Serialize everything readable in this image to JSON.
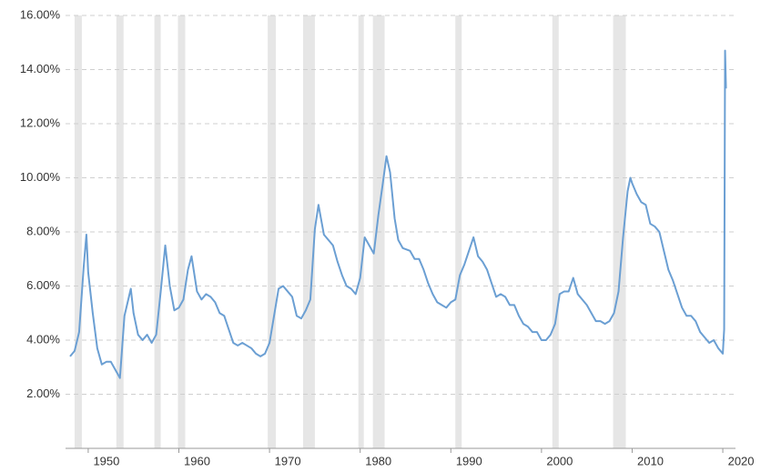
{
  "chart_data": {
    "type": "line",
    "x": [
      1948.0,
      1948.5,
      1949.0,
      1949.5,
      1949.8,
      1950.0,
      1950.5,
      1951.0,
      1951.5,
      1952.0,
      1952.5,
      1953.0,
      1953.5,
      1954.0,
      1954.7,
      1955.0,
      1955.5,
      1956.0,
      1956.5,
      1957.0,
      1957.5,
      1958.0,
      1958.5,
      1959.0,
      1959.5,
      1960.0,
      1960.5,
      1961.0,
      1961.4,
      1962.0,
      1962.5,
      1963.0,
      1963.5,
      1964.0,
      1964.5,
      1965.0,
      1965.5,
      1966.0,
      1966.5,
      1967.0,
      1967.5,
      1968.0,
      1968.5,
      1969.0,
      1969.5,
      1970.0,
      1970.5,
      1971.0,
      1971.5,
      1972.0,
      1972.5,
      1973.0,
      1973.5,
      1974.0,
      1974.5,
      1975.0,
      1975.4,
      1976.0,
      1976.5,
      1977.0,
      1977.5,
      1978.0,
      1978.5,
      1979.0,
      1979.5,
      1980.0,
      1980.5,
      1981.0,
      1981.5,
      1982.0,
      1982.5,
      1982.9,
      1983.3,
      1983.8,
      1984.2,
      1984.7,
      1985.5,
      1986.0,
      1986.5,
      1987.0,
      1987.5,
      1988.0,
      1988.5,
      1989.0,
      1989.5,
      1990.0,
      1990.5,
      1991.0,
      1991.5,
      1992.0,
      1992.5,
      1993.0,
      1993.5,
      1994.0,
      1994.5,
      1995.0,
      1995.5,
      1996.0,
      1996.5,
      1997.0,
      1997.5,
      1998.0,
      1998.5,
      1999.0,
      1999.5,
      2000.0,
      2000.5,
      2001.0,
      2001.5,
      2002.0,
      2002.5,
      2003.0,
      2003.5,
      2004.0,
      2004.5,
      2005.0,
      2005.5,
      2006.0,
      2006.5,
      2007.0,
      2007.5,
      2008.0,
      2008.5,
      2009.0,
      2009.5,
      2009.8,
      2010.0,
      2010.5,
      2011.0,
      2011.5,
      2012.0,
      2012.5,
      2013.0,
      2013.5,
      2014.0,
      2014.5,
      2015.0,
      2015.5,
      2016.0,
      2016.5,
      2017.0,
      2017.5,
      2018.0,
      2018.5,
      2019.0,
      2019.5,
      2020.0,
      2020.15,
      2020.25,
      2020.35
    ],
    "values": [
      3.4,
      3.6,
      4.3,
      6.7,
      7.9,
      6.5,
      5.0,
      3.7,
      3.1,
      3.2,
      3.2,
      2.9,
      2.6,
      4.9,
      5.9,
      5.0,
      4.2,
      4.0,
      4.2,
      3.9,
      4.2,
      5.8,
      7.5,
      6.0,
      5.1,
      5.2,
      5.5,
      6.6,
      7.1,
      5.8,
      5.5,
      5.7,
      5.6,
      5.4,
      5.0,
      4.9,
      4.4,
      3.9,
      3.8,
      3.9,
      3.8,
      3.7,
      3.5,
      3.4,
      3.5,
      3.9,
      4.9,
      5.9,
      6.0,
      5.8,
      5.6,
      4.9,
      4.8,
      5.1,
      5.5,
      8.1,
      9.0,
      7.9,
      7.7,
      7.5,
      6.9,
      6.4,
      6.0,
      5.9,
      5.7,
      6.3,
      7.8,
      7.5,
      7.2,
      8.6,
      9.8,
      10.8,
      10.2,
      8.5,
      7.7,
      7.4,
      7.3,
      7.0,
      7.0,
      6.6,
      6.1,
      5.7,
      5.4,
      5.3,
      5.2,
      5.4,
      5.5,
      6.4,
      6.8,
      7.3,
      7.8,
      7.1,
      6.9,
      6.6,
      6.1,
      5.6,
      5.7,
      5.6,
      5.3,
      5.3,
      4.9,
      4.6,
      4.5,
      4.3,
      4.3,
      4.0,
      4.0,
      4.2,
      4.6,
      5.7,
      5.8,
      5.8,
      6.3,
      5.7,
      5.5,
      5.3,
      5.0,
      4.7,
      4.7,
      4.6,
      4.7,
      5.0,
      5.8,
      7.8,
      9.5,
      10.0,
      9.8,
      9.4,
      9.1,
      9.0,
      8.3,
      8.2,
      8.0,
      7.3,
      6.6,
      6.2,
      5.7,
      5.2,
      4.9,
      4.9,
      4.7,
      4.3,
      4.1,
      3.9,
      4.0,
      3.7,
      3.5,
      4.4,
      14.7,
      13.3
    ],
    "color": "#6b9fd3",
    "shaded_ranges": [
      [
        1948.5,
        1949.3
      ],
      [
        1953.1,
        1953.9
      ],
      [
        1957.3,
        1958.0
      ],
      [
        1959.9,
        1960.7
      ],
      [
        1969.8,
        1970.7
      ],
      [
        1973.7,
        1975.0
      ],
      [
        1979.8,
        1980.4
      ],
      [
        1981.4,
        1982.7
      ],
      [
        1990.5,
        1991.2
      ],
      [
        2001.2,
        2001.9
      ],
      [
        2007.9,
        2009.3
      ]
    ],
    "shade_color": "#e6e6e6",
    "xlim": [
      1947.5,
      2021.4
    ],
    "xticks": [
      1950,
      1960,
      1970,
      1980,
      1990,
      2000,
      2010,
      2020
    ],
    "ylim": [
      0,
      16
    ],
    "yticks": [
      {
        "value": 2,
        "label": "2.00%"
      },
      {
        "value": 4,
        "label": "4.00%"
      },
      {
        "value": 6,
        "label": "6.00%"
      },
      {
        "value": 8,
        "label": "8.00%"
      },
      {
        "value": 10,
        "label": "10.00%"
      },
      {
        "value": 12,
        "label": "12.00%"
      },
      {
        "value": 14,
        "label": "14.00%"
      },
      {
        "value": 16,
        "label": "16.00%"
      }
    ],
    "grid": true
  }
}
